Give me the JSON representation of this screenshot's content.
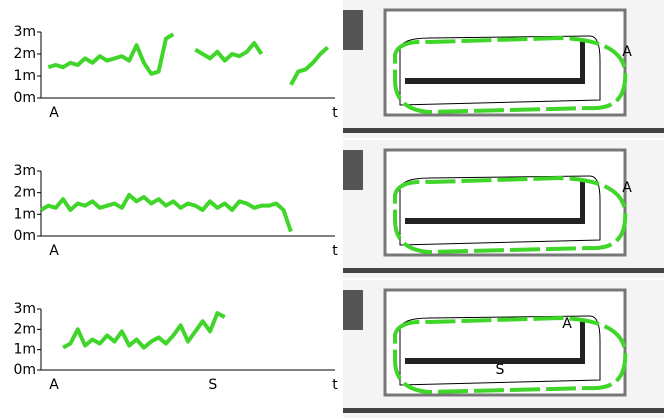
{
  "chart_data": [
    {
      "type": "line",
      "xlim": [
        0,
        100
      ],
      "ylim": [
        0,
        3
      ],
      "yticks": [
        {
          "value": 0,
          "label": "0m"
        },
        {
          "value": 1,
          "label": "1m"
        },
        {
          "value": 2,
          "label": "2m"
        },
        {
          "value": 3,
          "label": "3m"
        }
      ],
      "x": [
        0,
        2.5,
        5,
        7.5,
        10,
        12.5,
        15,
        17.5,
        20,
        22.5,
        25,
        27.5,
        30,
        32.5,
        35,
        37.5,
        40,
        42.5,
        45,
        47.5,
        50,
        52.5,
        55,
        57.5,
        60,
        62.5,
        65,
        67.5,
        70,
        72.5,
        75,
        77.5,
        80,
        82.5,
        85,
        87.5,
        90,
        92.5,
        95,
        97.5,
        100
      ],
      "series": [
        {
          "color": "#3fd629",
          "values": [
            null,
            1.4,
            1.5,
            1.4,
            1.6,
            1.5,
            1.8,
            1.6,
            1.9,
            1.7,
            1.8,
            1.9,
            1.7,
            2.4,
            1.6,
            1.1,
            1.2,
            2.7,
            2.9,
            null,
            null,
            2.2,
            2.0,
            1.8,
            2.1,
            1.7,
            2.0,
            1.9,
            2.1,
            2.5,
            2.0,
            null,
            null,
            null,
            0.6,
            1.2,
            1.3,
            1.6,
            2.0,
            2.3,
            null
          ]
        }
      ],
      "annotations": [
        {
          "x": 0,
          "text": "A"
        }
      ],
      "xlabel": "t",
      "map_labels": [
        "A"
      ]
    },
    {
      "type": "line",
      "xlim": [
        0,
        100
      ],
      "ylim": [
        0,
        3
      ],
      "yticks": [
        {
          "value": 0,
          "label": "0m"
        },
        {
          "value": 1,
          "label": "1m"
        },
        {
          "value": 2,
          "label": "2m"
        },
        {
          "value": 3,
          "label": "3m"
        }
      ],
      "x": [
        0,
        2.5,
        5,
        7.5,
        10,
        12.5,
        15,
        17.5,
        20,
        22.5,
        25,
        27.5,
        30,
        32.5,
        35,
        37.5,
        40,
        42.5,
        45,
        47.5,
        50,
        52.5,
        55,
        57.5,
        60,
        62.5,
        65,
        67.5,
        70,
        72.5,
        75,
        77.5,
        80,
        82.5,
        85,
        87.5,
        90,
        92.5,
        95,
        97.5,
        100
      ],
      "series": [
        {
          "color": "#3fd629",
          "values": [
            1.2,
            1.4,
            1.3,
            1.7,
            1.2,
            1.5,
            1.4,
            1.6,
            1.3,
            1.4,
            1.5,
            1.3,
            1.9,
            1.6,
            1.8,
            1.5,
            1.7,
            1.4,
            1.6,
            1.3,
            1.5,
            1.4,
            1.2,
            1.6,
            1.3,
            1.5,
            1.2,
            1.6,
            1.5,
            1.3,
            1.4,
            1.4,
            1.5,
            1.2,
            0.2,
            null,
            null,
            null,
            null,
            null,
            null
          ]
        }
      ],
      "annotations": [
        {
          "x": 0,
          "text": "A"
        }
      ],
      "xlabel": "t",
      "map_labels": [
        "A"
      ]
    },
    {
      "type": "line",
      "xlim": [
        0,
        100
      ],
      "ylim": [
        0,
        3
      ],
      "yticks": [
        {
          "value": 0,
          "label": "0m"
        },
        {
          "value": 1,
          "label": "1m"
        },
        {
          "value": 2,
          "label": "2m"
        },
        {
          "value": 3,
          "label": "3m"
        }
      ],
      "x": [
        0,
        2.5,
        5,
        7.5,
        10,
        12.5,
        15,
        17.5,
        20,
        22.5,
        25,
        27.5,
        30,
        32.5,
        35,
        37.5,
        40,
        42.5,
        45,
        47.5,
        50,
        52.5,
        55,
        57.5,
        60,
        62.5,
        65,
        67.5,
        70,
        72.5,
        75,
        77.5,
        80,
        82.5,
        85,
        87.5,
        90,
        92.5,
        95,
        97.5,
        100
      ],
      "series": [
        {
          "color": "#3fd629",
          "values": [
            null,
            null,
            null,
            1.1,
            1.3,
            2.0,
            1.2,
            1.5,
            1.3,
            1.7,
            1.4,
            1.9,
            1.2,
            1.5,
            1.1,
            1.4,
            1.6,
            1.3,
            1.7,
            2.2,
            1.4,
            1.9,
            2.4,
            1.9,
            2.8,
            2.6,
            null,
            null,
            null,
            null,
            null,
            null,
            null,
            null,
            null,
            null,
            null,
            null,
            null,
            null,
            null
          ]
        }
      ],
      "annotations": [
        {
          "x": 0,
          "text": "A"
        },
        {
          "x": 54,
          "text": "S"
        }
      ],
      "xlabel": "t",
      "map_labels": [
        "A",
        "S"
      ]
    }
  ]
}
